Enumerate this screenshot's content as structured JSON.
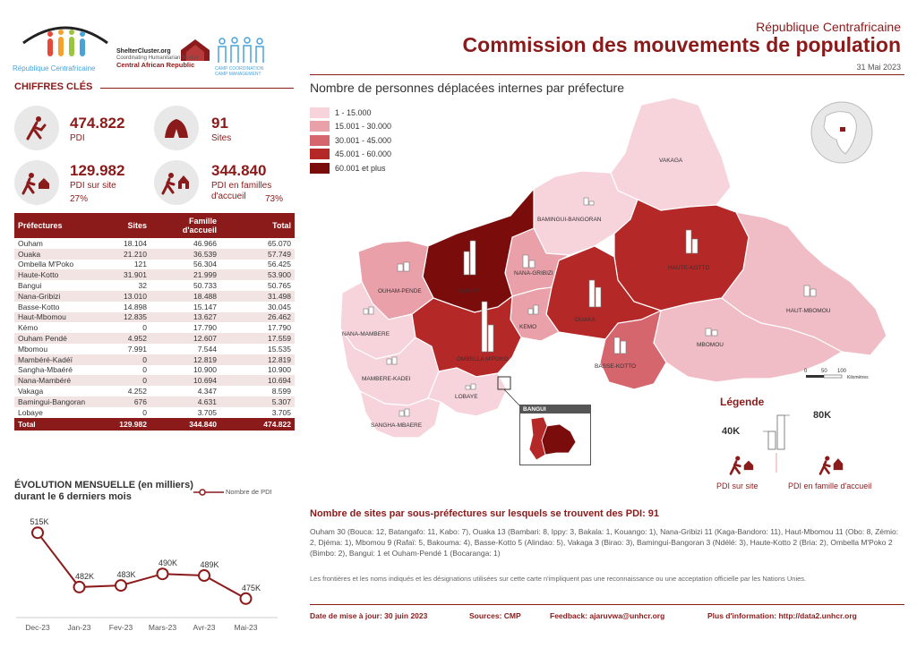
{
  "header": {
    "logo_caption": "République Centrafricaine",
    "shelter_line1": "ShelterCluster.org",
    "shelter_line2": "Coordinating Humanitarian Shelter",
    "shelter_line3": "Central African Republic",
    "cccm_line1": "CAMP COORDINATION",
    "cccm_line2": "CAMP MANAGEMENT",
    "country": "République Centrafricaine",
    "title": "Commission des mouvements de population",
    "date": "31 Mai 2023"
  },
  "key_figures": {
    "section_title": "CHIFFRES CLÉS",
    "pdi_value": "474.822",
    "pdi_label": "PDI",
    "sites_value": "91",
    "sites_label": "Sites",
    "on_site_value": "129.982",
    "on_site_label": "PDI sur site",
    "on_site_pct": "27%",
    "host_value": "344.840",
    "host_label1": "PDI en familles",
    "host_label2": "d'accueil",
    "host_pct": "73%"
  },
  "table": {
    "headers": [
      "Préfectures",
      "Sites",
      "Famille d'accueil",
      "Total"
    ],
    "rows": [
      [
        "Ouham",
        "18.104",
        "46.966",
        "65.070"
      ],
      [
        "Ouaka",
        "21.210",
        "36.539",
        "57.749"
      ],
      [
        "Ombella M'Poko",
        "121",
        "56.304",
        "56.425"
      ],
      [
        "Haute-Kotto",
        "31.901",
        "21.999",
        "53.900"
      ],
      [
        "Bangui",
        "32",
        "50.733",
        "50.765"
      ],
      [
        "Nana-Gribizi",
        "13.010",
        "18.488",
        "31.498"
      ],
      [
        "Basse-Kotto",
        "14.898",
        "15.147",
        "30.045"
      ],
      [
        "Haut-Mbomou",
        "12.835",
        "13.627",
        "26.462"
      ],
      [
        "Kémo",
        "0",
        "17.790",
        "17.790"
      ],
      [
        "Ouham Pendé",
        "4.952",
        "12.607",
        "17.559"
      ],
      [
        "Mbomou",
        "7.991",
        "7.544",
        "15.535"
      ],
      [
        "Mambéré-Kadéï",
        "0",
        "12.819",
        "12.819"
      ],
      [
        "Sangha-Mbaéré",
        "0",
        "10.900",
        "10.900"
      ],
      [
        "Nana-Mambéré",
        "0",
        "10.694",
        "10.694"
      ],
      [
        "Vakaga",
        "4.252",
        "4.347",
        "8.599"
      ],
      [
        "Bamingui-Bangoran",
        "676",
        "4.631",
        "5.307"
      ],
      [
        "Lobaye",
        "0",
        "3.705",
        "3.705"
      ]
    ],
    "total": [
      "Total",
      "129.982",
      "344.840",
      "474.822"
    ]
  },
  "evolution": {
    "title_line1": "ÉVOLUTION MENSUELLE (en milliers)",
    "title_line2": "durant le 6 derniers mois",
    "legend": "Nombre de PDI",
    "chart_data": {
      "type": "line",
      "categories": [
        "Dec-23",
        "Jan-23",
        "Fev-23",
        "Mars-23",
        "Avr-23",
        "Mai-23"
      ],
      "values": [
        515,
        482,
        483,
        490,
        489,
        475
      ],
      "labels": [
        "515K",
        "482K",
        "483K",
        "490K",
        "489K",
        "475K"
      ]
    }
  },
  "map": {
    "title": "Nombre de personnes déplacées internes par préfecture",
    "legend_classes": [
      {
        "label": "1 - 15.000",
        "color": "#f7d4dc"
      },
      {
        "label": "15.001 - 30.000",
        "color": "#e9a0a8"
      },
      {
        "label": "30.001 - 45.000",
        "color": "#d6666d"
      },
      {
        "label": "45.001 - 60.000",
        "color": "#b42828"
      },
      {
        "label": "60.001 et plus",
        "color": "#7a0c0c"
      }
    ],
    "regions": {
      "vakaga": "VAKAGA",
      "bamingui": "BAMINGUI-BANGORAN",
      "haute_kotto": "HAUTE-KOTTO",
      "haut_mbomou": "HAUT-MBOMOU",
      "mbomou": "MBOMOU",
      "basse_kotto": "BASSE-KOTTO",
      "ouaka": "OUAKA",
      "kemo": "KEMO",
      "nana_gribizi": "NANA-GRIBIZI",
      "ouham": "OUHAM",
      "ouham_pende": "OUHAM-PENDE",
      "nana_mambere": "NANA-MAMBERE",
      "mambere_kadei": "MAMBERE-KADEI",
      "ombella": "OMBELLA M'POKO",
      "lobaye": "LOBAYE",
      "sangha": "SANGHA-MBAERE"
    },
    "inset_label": "BANGUI",
    "scale_ticks": [
      "0",
      "50",
      "100"
    ],
    "scale_unit": "Kilomètres"
  },
  "legend": {
    "title": "Légende",
    "big": "80K",
    "small": "40K",
    "site_caption": "PDI sur site",
    "host_caption": "PDI en famille d'accueil"
  },
  "sites": {
    "title": "Nombre de sites par sous-préfectures sur lesquels se trouvent des PDI: 91",
    "body": "Ouham 30 (Bouca: 12, Batangafo: 11, Kabo: 7), Ouaka 13 (Bambari: 8, Ippy: 3, Bakala: 1, Kouango: 1), Nana-Gribizi 11 (Kaga-Bandoro: 11), Haut-Mbomou 11 (Obo: 8, Zémio: 2, Djéma: 1), Mbomou 9 (Rafaï: 5, Bakouma: 4), Basse-Kotto 5 (Alindao: 5), Vakaga 3 (Birao: 3), Bamingui-Bangoran 3 (Ndélé: 3), Haute-Kotto 2 (Bria: 2), Ombella M'Poko 2 (Bimbo: 2), Bangui: 1 et Ouham-Pendé 1 (Bocaranga: 1)",
    "disclaimer": "Les frontières et les noms indiqués et les désignations utilisées sur cette carte n'impliquent pas une reconnaissance ou une acceptation officielle par les Nations Unies."
  },
  "footer": {
    "update_label": "Date de mise à jour:",
    "update_value": "30 juin 2023",
    "sources_label": "Sources:",
    "sources_value": "CMP",
    "feedback_label": "Feedback:",
    "feedback_value": "ajaruvwa@unhcr.org",
    "info_label": "Plus d'information:",
    "info_value": "http://data2.unhcr.org"
  }
}
